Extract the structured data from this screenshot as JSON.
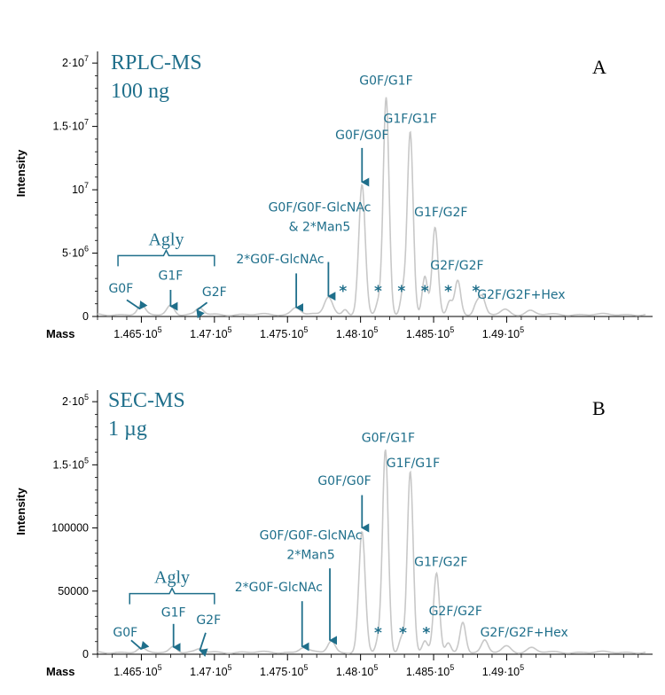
{
  "chart_data": [
    {
      "type": "line",
      "panel_label": "A",
      "title_lines": [
        "RPLC-MS",
        "100 ng"
      ],
      "xlabel": "Mass",
      "ylabel": "Intensity",
      "xlim": [
        146200,
        149950
      ],
      "ylim": [
        0,
        20500000
      ],
      "color": "#c8c8c8",
      "accent": "#1f6f8b",
      "x_ticks": [
        {
          "v": 146500,
          "m": "1.465·10",
          "e": "5"
        },
        {
          "v": 147000,
          "m": "1.47·10",
          "e": "5"
        },
        {
          "v": 147500,
          "m": "1.475·10",
          "e": "5"
        },
        {
          "v": 148000,
          "m": "1.48·10",
          "e": "5"
        },
        {
          "v": 148500,
          "m": "1.485·10",
          "e": "5"
        },
        {
          "v": 149000,
          "m": "1.49·10",
          "e": "5"
        }
      ],
      "y_ticks": [
        {
          "v": 0,
          "m": "0",
          "e": ""
        },
        {
          "v": 5000000,
          "m": "5·10",
          "e": "6"
        },
        {
          "v": 10000000,
          "m": "10",
          "e": "7"
        },
        {
          "v": 15000000,
          "m": "1.5·10",
          "e": "7"
        },
        {
          "v": 20000000,
          "m": "2·10",
          "e": "7"
        }
      ],
      "baseline": 150000,
      "peaks": [
        {
          "x": 146500,
          "y": 700000,
          "w": 25
        },
        {
          "x": 146700,
          "y": 750000,
          "w": 25
        },
        {
          "x": 146900,
          "y": 500000,
          "w": 25
        },
        {
          "x": 147560,
          "y": 600000,
          "w": 30
        },
        {
          "x": 147780,
          "y": 1400000,
          "w": 28
        },
        {
          "x": 147895,
          "y": 450000,
          "w": 18
        },
        {
          "x": 148010,
          "y": 10200000,
          "w": 22
        },
        {
          "x": 148120,
          "y": 900000,
          "w": 16
        },
        {
          "x": 148175,
          "y": 17100000,
          "w": 20
        },
        {
          "x": 148290,
          "y": 1800000,
          "w": 18
        },
        {
          "x": 148340,
          "y": 14400000,
          "w": 20
        },
        {
          "x": 148440,
          "y": 3000000,
          "w": 18
        },
        {
          "x": 148510,
          "y": 6800000,
          "w": 20
        },
        {
          "x": 148610,
          "y": 1100000,
          "w": 18
        },
        {
          "x": 148665,
          "y": 2700000,
          "w": 20
        },
        {
          "x": 148790,
          "y": 700000,
          "w": 18
        },
        {
          "x": 148830,
          "y": 1400000,
          "w": 22
        },
        {
          "x": 148990,
          "y": 400000,
          "w": 30
        },
        {
          "x": 149160,
          "y": 300000,
          "w": 30
        }
      ],
      "annotations": [
        {
          "lines": [
            "G0F/G0F"
          ],
          "x": 148010,
          "y": 14000000,
          "anchor": "end",
          "dx": 15,
          "arrow": {
            "x": 148010,
            "y0": 13300000,
            "y1": 10600000
          }
        },
        {
          "lines": [
            "G0F/G1F"
          ],
          "x": 148175,
          "y": 18300000,
          "anchor": "middle",
          "dx": 0
        },
        {
          "lines": [
            "G1F/G1F"
          ],
          "x": 148340,
          "y": 15300000,
          "anchor": "middle",
          "dx": 0
        },
        {
          "lines": [
            "G0F/G0F-GlcNAc",
            "& 2*Man5"
          ],
          "x": 147720,
          "y": 8300000,
          "anchor": "middle",
          "dx": 0,
          "arrow": {
            "x": 147780,
            "y0": 4300000,
            "y1": 1600000
          }
        },
        {
          "lines": [
            "2*G0F-GlcNAc"
          ],
          "x": 147450,
          "y": 4200000,
          "anchor": "middle",
          "dx": 0,
          "arrow": {
            "x": 147560,
            "y0": 3400000,
            "y1": 700000
          }
        },
        {
          "lines": [
            "G1F/G2F"
          ],
          "x": 148550,
          "y": 7900000,
          "anchor": "middle",
          "dx": 0
        },
        {
          "lines": [
            "G2F/G2F"
          ],
          "x": 148660,
          "y": 3700000,
          "anchor": "middle",
          "dx": 0
        },
        {
          "lines": [
            "G2F/G2F+Hex"
          ],
          "x": 149100,
          "y": 1400000,
          "anchor": "middle",
          "dx": 0
        },
        {
          "lines": [
            "G0F"
          ],
          "x": 146360,
          "y": 1900000,
          "anchor": "middle",
          "dx": 0,
          "arrow": {
            "x": 146490,
            "y0": 1300000,
            "y1": 600000,
            "x0": 146400
          }
        },
        {
          "lines": [
            "G1F"
          ],
          "x": 146700,
          "y": 2900000,
          "anchor": "middle",
          "dx": 0,
          "arrow": {
            "x": 146700,
            "y0": 2100000,
            "y1": 800000
          }
        },
        {
          "lines": [
            "G2F"
          ],
          "x": 147000,
          "y": 1600000,
          "anchor": "middle",
          "dx": 0,
          "arrow": {
            "x": 146880,
            "y0": 1100000,
            "y1": 500000,
            "x0": 146950
          }
        }
      ],
      "stars": [
        147880,
        148120,
        148280,
        148440,
        148600,
        148790
      ],
      "star_y": 1600000,
      "agly": {
        "label": "Agly",
        "x0": 146340,
        "x1": 147000,
        "y": 4800000
      }
    },
    {
      "type": "line",
      "panel_label": "B",
      "title_lines": [
        "SEC-MS",
        "1 µg"
      ],
      "xlabel": "Mass",
      "ylabel": "Intensity",
      "xlim": [
        146200,
        149950
      ],
      "ylim": [
        0,
        205000
      ],
      "color": "#c8c8c8",
      "accent": "#1f6f8b",
      "x_ticks": [
        {
          "v": 146500,
          "m": "1.465·10",
          "e": "5"
        },
        {
          "v": 147000,
          "m": "1.47·10",
          "e": "5"
        },
        {
          "v": 147500,
          "m": "1.475·10",
          "e": "5"
        },
        {
          "v": 148000,
          "m": "1.48·10",
          "e": "5"
        },
        {
          "v": 148500,
          "m": "1.485·10",
          "e": "5"
        },
        {
          "v": 149000,
          "m": "1.49·10",
          "e": "5"
        }
      ],
      "y_ticks": [
        {
          "v": 0,
          "m": "0",
          "e": ""
        },
        {
          "v": 50000,
          "m": "50000",
          "e": ""
        },
        {
          "v": 100000,
          "m": "100000",
          "e": ""
        },
        {
          "v": 150000,
          "m": "1.5·10",
          "e": "5"
        },
        {
          "v": 200000,
          "m": "2·10",
          "e": "5"
        }
      ],
      "baseline": 1500,
      "peaks": [
        {
          "x": 146500,
          "y": 3000,
          "w": 25
        },
        {
          "x": 146720,
          "y": 5000,
          "w": 25
        },
        {
          "x": 146900,
          "y": 2500,
          "w": 25
        },
        {
          "x": 147610,
          "y": 4000,
          "w": 30
        },
        {
          "x": 147800,
          "y": 9000,
          "w": 25
        },
        {
          "x": 148010,
          "y": 95000,
          "w": 22
        },
        {
          "x": 148120,
          "y": 9000,
          "w": 16
        },
        {
          "x": 148170,
          "y": 160000,
          "w": 20
        },
        {
          "x": 148280,
          "y": 12000,
          "w": 18
        },
        {
          "x": 148340,
          "y": 143000,
          "w": 20
        },
        {
          "x": 148440,
          "y": 9000,
          "w": 18
        },
        {
          "x": 148520,
          "y": 62000,
          "w": 20
        },
        {
          "x": 148600,
          "y": 8000,
          "w": 18
        },
        {
          "x": 148700,
          "y": 24000,
          "w": 20
        },
        {
          "x": 148850,
          "y": 9000,
          "w": 22
        },
        {
          "x": 149000,
          "y": 5000,
          "w": 30
        },
        {
          "x": 149170,
          "y": 3500,
          "w": 30
        }
      ],
      "annotations": [
        {
          "lines": [
            "G0F/G0F"
          ],
          "x": 147890,
          "y": 134000,
          "anchor": "middle",
          "dx": 0,
          "arrow": {
            "x": 148010,
            "y0": 126000,
            "y1": 100000
          }
        },
        {
          "lines": [
            "G0F/G1F"
          ],
          "x": 148190,
          "y": 168000,
          "anchor": "middle",
          "dx": 0
        },
        {
          "lines": [
            "G1F/G1F"
          ],
          "x": 148360,
          "y": 148000,
          "anchor": "middle",
          "dx": 0
        },
        {
          "lines": [
            "G0F/G0F-GlcNAc",
            "2*Man5"
          ],
          "x": 147660,
          "y": 91000,
          "anchor": "middle",
          "dx": 0,
          "arrow": {
            "x": 147790,
            "y0": 68000,
            "y1": 11000
          }
        },
        {
          "lines": [
            "2*G0F-GlcNAc"
          ],
          "x": 147440,
          "y": 50000,
          "anchor": "middle",
          "dx": 0,
          "arrow": {
            "x": 147600,
            "y0": 42000,
            "y1": 6000
          }
        },
        {
          "lines": [
            "G1F/G2F"
          ],
          "x": 148550,
          "y": 70000,
          "anchor": "middle",
          "dx": 0
        },
        {
          "lines": [
            "G2F/G2F"
          ],
          "x": 148650,
          "y": 31000,
          "anchor": "middle",
          "dx": 0
        },
        {
          "lines": [
            "G2F/G2F+Hex"
          ],
          "x": 149120,
          "y": 14000,
          "anchor": "middle",
          "dx": 0
        },
        {
          "lines": [
            "G0F"
          ],
          "x": 146390,
          "y": 14000,
          "anchor": "middle",
          "dx": 0,
          "arrow": {
            "x": 146500,
            "y0": 11000,
            "y1": 4000,
            "x0": 146430
          }
        },
        {
          "lines": [
            "G1F"
          ],
          "x": 146720,
          "y": 30000,
          "anchor": "middle",
          "dx": 0,
          "arrow": {
            "x": 146720,
            "y0": 24000,
            "y1": 5500
          }
        },
        {
          "lines": [
            "G2F"
          ],
          "x": 146960,
          "y": 24000,
          "anchor": "middle",
          "dx": 0,
          "arrow": {
            "x": 146900,
            "y0": 17000,
            "y1": 3000,
            "x0": 146940
          }
        }
      ],
      "stars": [
        148120,
        148290,
        148450
      ],
      "star_y": 13000,
      "agly": {
        "label": "Agly",
        "x0": 146420,
        "x1": 147000,
        "y": 48000
      }
    }
  ]
}
